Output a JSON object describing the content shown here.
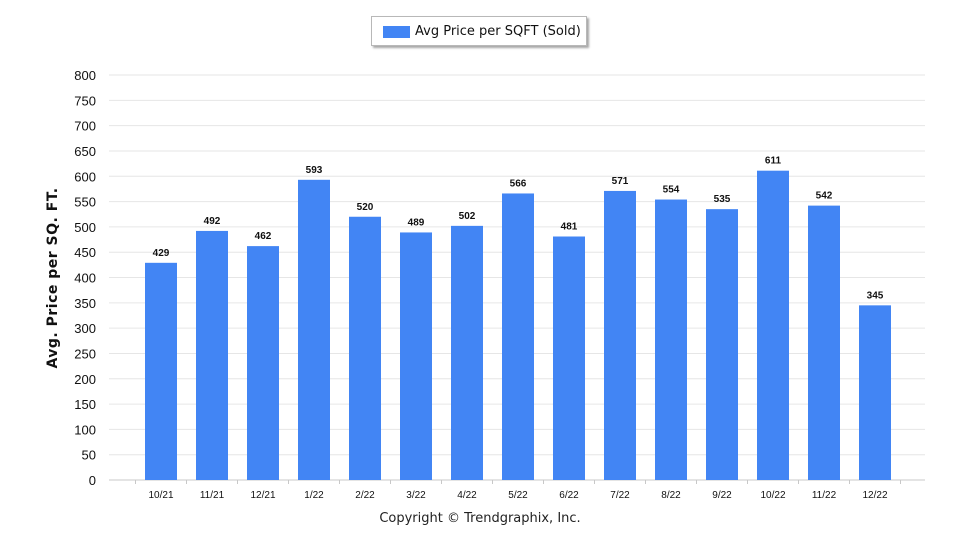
{
  "chart_data": {
    "type": "bar",
    "categories": [
      "10/21",
      "11/21",
      "12/21",
      "1/22",
      "2/22",
      "3/22",
      "4/22",
      "5/22",
      "6/22",
      "7/22",
      "8/22",
      "9/22",
      "10/22",
      "11/22",
      "12/22"
    ],
    "series": [
      {
        "name": "Avg Price per SQFT (Sold)",
        "values": [
          429,
          492,
          462,
          593,
          520,
          489,
          502,
          566,
          481,
          571,
          554,
          535,
          611,
          542,
          345
        ]
      }
    ],
    "ylabel": "Avg. Price per SQ. FT.",
    "xlabel": "",
    "ylim": [
      0,
      800
    ],
    "yticks": [
      0,
      50,
      100,
      150,
      200,
      250,
      300,
      350,
      400,
      450,
      500,
      550,
      600,
      650,
      700,
      750,
      800
    ],
    "grid": true,
    "legend_position": "top-center",
    "bar_color": "#4285f4"
  },
  "footer": {
    "copyright": "Copyright © Trendgraphix, Inc."
  }
}
